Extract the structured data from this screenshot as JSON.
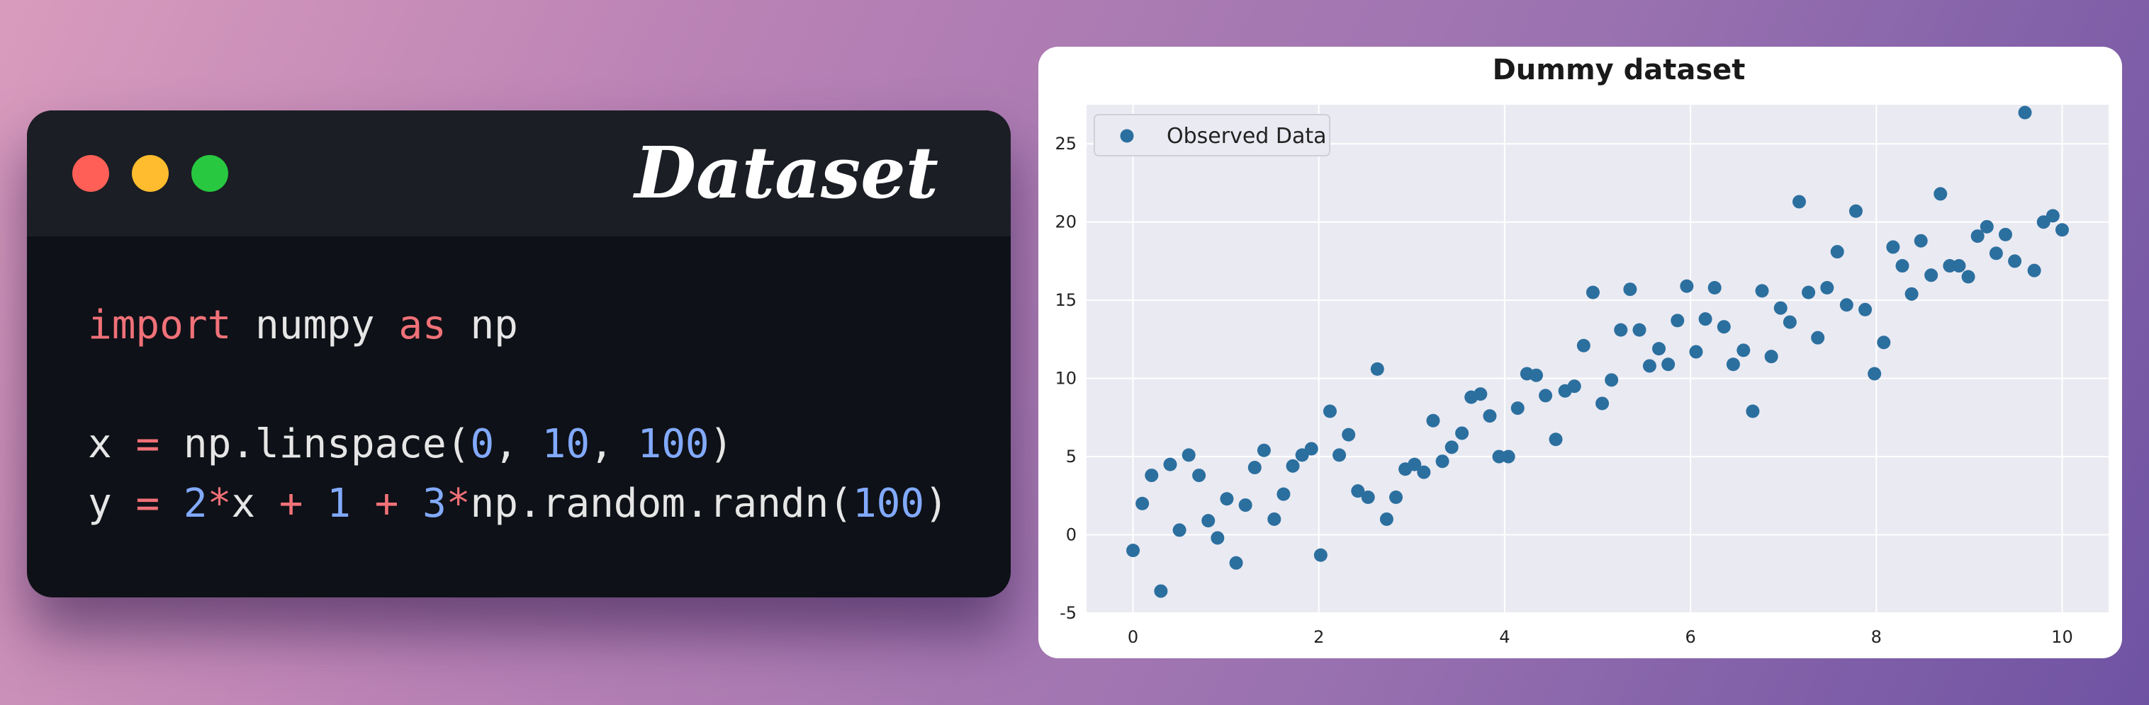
{
  "code_card": {
    "title": "Dataset",
    "window_controls": [
      "close",
      "minimize",
      "maximize"
    ],
    "lines": [
      [
        {
          "t": "kw",
          "v": "import"
        },
        {
          "t": "p",
          "v": " numpy "
        },
        {
          "t": "kw",
          "v": "as"
        },
        {
          "t": "p",
          "v": " np"
        }
      ],
      [],
      [
        {
          "t": "p",
          "v": "x "
        },
        {
          "t": "op",
          "v": "="
        },
        {
          "t": "p",
          "v": " np.linspace("
        },
        {
          "t": "num",
          "v": "0"
        },
        {
          "t": "p",
          "v": ", "
        },
        {
          "t": "num",
          "v": "10"
        },
        {
          "t": "p",
          "v": ", "
        },
        {
          "t": "num",
          "v": "100"
        },
        {
          "t": "p",
          "v": ")"
        }
      ],
      [
        {
          "t": "p",
          "v": "y "
        },
        {
          "t": "op",
          "v": "="
        },
        {
          "t": "p",
          "v": " "
        },
        {
          "t": "num",
          "v": "2"
        },
        {
          "t": "op",
          "v": "*"
        },
        {
          "t": "p",
          "v": "x "
        },
        {
          "t": "op",
          "v": "+"
        },
        {
          "t": "p",
          "v": " "
        },
        {
          "t": "num",
          "v": "1"
        },
        {
          "t": "p",
          "v": " "
        },
        {
          "t": "op",
          "v": "+"
        },
        {
          "t": "p",
          "v": " "
        },
        {
          "t": "num",
          "v": "3"
        },
        {
          "t": "op",
          "v": "*"
        },
        {
          "t": "p",
          "v": "np.random.randn("
        },
        {
          "t": "num",
          "v": "100"
        },
        {
          "t": "p",
          "v": ")"
        }
      ]
    ],
    "colors": {
      "keyword": "#f07178",
      "number": "#82aaff",
      "plain": "#e6e6e6"
    }
  },
  "chart_data": {
    "type": "scatter",
    "title": "Dummy dataset",
    "xlabel": "",
    "ylabel": "",
    "xlim": [
      -0.5,
      10.5
    ],
    "ylim": [
      -5,
      27.5
    ],
    "xticks": [
      0,
      2,
      4,
      6,
      8,
      10
    ],
    "yticks": [
      -5,
      0,
      5,
      10,
      15,
      20,
      25
    ],
    "grid": true,
    "legend_position": "top-left",
    "series": [
      {
        "name": "Observed Data",
        "color": "#2b6f9f",
        "points": [
          [
            0.0,
            -1.0
          ],
          [
            0.1,
            2.0
          ],
          [
            0.2,
            3.8
          ],
          [
            0.3,
            -3.6
          ],
          [
            0.4,
            4.5
          ],
          [
            0.5,
            0.3
          ],
          [
            0.6,
            5.1
          ],
          [
            0.71,
            3.8
          ],
          [
            0.81,
            0.9
          ],
          [
            0.91,
            -0.2
          ],
          [
            1.01,
            2.3
          ],
          [
            1.11,
            -1.8
          ],
          [
            1.21,
            1.9
          ],
          [
            1.31,
            4.3
          ],
          [
            1.41,
            5.4
          ],
          [
            1.52,
            1.0
          ],
          [
            1.62,
            2.6
          ],
          [
            1.72,
            4.4
          ],
          [
            1.82,
            5.1
          ],
          [
            1.92,
            5.5
          ],
          [
            2.02,
            -1.3
          ],
          [
            2.12,
            7.9
          ],
          [
            2.22,
            5.1
          ],
          [
            2.32,
            6.4
          ],
          [
            2.42,
            2.8
          ],
          [
            2.53,
            2.4
          ],
          [
            2.63,
            10.6
          ],
          [
            2.73,
            1.0
          ],
          [
            2.83,
            2.4
          ],
          [
            2.93,
            4.2
          ],
          [
            3.03,
            4.5
          ],
          [
            3.13,
            4.0
          ],
          [
            3.23,
            7.3
          ],
          [
            3.33,
            4.7
          ],
          [
            3.43,
            5.6
          ],
          [
            3.54,
            6.5
          ],
          [
            3.64,
            8.8
          ],
          [
            3.74,
            9.0
          ],
          [
            3.84,
            7.6
          ],
          [
            3.94,
            5.0
          ],
          [
            4.04,
            5.0
          ],
          [
            4.14,
            8.1
          ],
          [
            4.24,
            10.3
          ],
          [
            4.34,
            10.2
          ],
          [
            4.44,
            8.9
          ],
          [
            4.55,
            6.1
          ],
          [
            4.65,
            9.2
          ],
          [
            4.75,
            9.5
          ],
          [
            4.85,
            12.1
          ],
          [
            4.95,
            15.5
          ],
          [
            5.05,
            8.4
          ],
          [
            5.15,
            9.9
          ],
          [
            5.25,
            13.1
          ],
          [
            5.35,
            15.7
          ],
          [
            5.45,
            13.1
          ],
          [
            5.56,
            10.8
          ],
          [
            5.66,
            11.9
          ],
          [
            5.76,
            10.9
          ],
          [
            5.86,
            13.7
          ],
          [
            5.96,
            15.9
          ],
          [
            6.06,
            11.7
          ],
          [
            6.16,
            13.8
          ],
          [
            6.26,
            15.8
          ],
          [
            6.36,
            13.3
          ],
          [
            6.46,
            10.9
          ],
          [
            6.57,
            11.8
          ],
          [
            6.67,
            7.9
          ],
          [
            6.77,
            15.6
          ],
          [
            6.87,
            11.4
          ],
          [
            6.97,
            14.5
          ],
          [
            7.07,
            13.6
          ],
          [
            7.17,
            21.3
          ],
          [
            7.27,
            15.5
          ],
          [
            7.37,
            12.6
          ],
          [
            7.47,
            15.8
          ],
          [
            7.58,
            18.1
          ],
          [
            7.68,
            14.7
          ],
          [
            7.78,
            20.7
          ],
          [
            7.88,
            14.4
          ],
          [
            7.98,
            10.3
          ],
          [
            8.08,
            12.3
          ],
          [
            8.18,
            18.4
          ],
          [
            8.28,
            17.2
          ],
          [
            8.38,
            15.4
          ],
          [
            8.48,
            18.8
          ],
          [
            8.59,
            16.6
          ],
          [
            8.69,
            21.8
          ],
          [
            8.79,
            17.2
          ],
          [
            8.89,
            17.2
          ],
          [
            8.99,
            16.5
          ],
          [
            9.09,
            19.1
          ],
          [
            9.19,
            19.7
          ],
          [
            9.29,
            18.0
          ],
          [
            9.39,
            19.2
          ],
          [
            9.49,
            17.5
          ],
          [
            9.6,
            27.0
          ],
          [
            9.7,
            16.9
          ],
          [
            9.8,
            20.0
          ],
          [
            9.9,
            20.4
          ],
          [
            10.0,
            19.5
          ]
        ]
      }
    ]
  }
}
